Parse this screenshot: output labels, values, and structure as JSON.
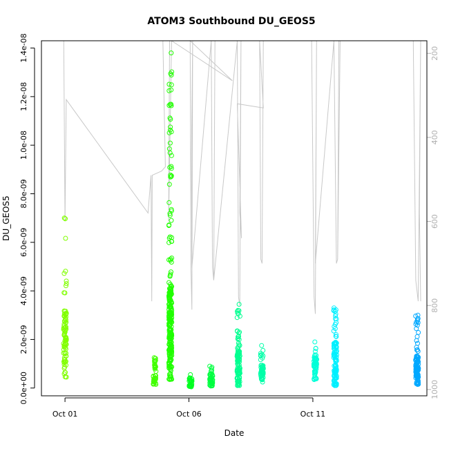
{
  "chart_data": {
    "type": "scatter",
    "title": "ATOM3 Southbound DU_GEOS5",
    "xlabel": "Date",
    "ylabel": "DU_GEOS5",
    "x_ticks": [
      {
        "day": 1,
        "label": "Oct 01"
      },
      {
        "day": 6,
        "label": "Oct 06"
      },
      {
        "day": 11,
        "label": "Oct 11"
      }
    ],
    "xlim_days": [
      0.05,
      15.6
    ],
    "ylim": [
      -3.2e-10,
      1.43e-08
    ],
    "y_ticks": [
      {
        "value": 0,
        "label": "0.0e+00"
      },
      {
        "value": 2e-09,
        "label": "2.0e-09"
      },
      {
        "value": 4e-09,
        "label": "4.0e-09"
      },
      {
        "value": 6e-09,
        "label": "6.0e-09"
      },
      {
        "value": 8e-09,
        "label": "8.0e-09"
      },
      {
        "value": 1e-08,
        "label": "1.0e-08"
      },
      {
        "value": 1.2e-08,
        "label": "1.2e-08"
      },
      {
        "value": 1.4e-08,
        "label": "1.4e-08"
      }
    ],
    "y2_ticks": [
      {
        "value": 200,
        "label": "200"
      },
      {
        "value": 400,
        "label": "400"
      },
      {
        "value": 600,
        "label": "600"
      },
      {
        "value": 800,
        "label": "800"
      },
      {
        "value": 1000,
        "label": "1000"
      }
    ],
    "y2lim": [
      1015,
      170
    ],
    "y2_reversed": true,
    "point_groups": [
      {
        "day": 1.0,
        "y_min": 4.5e-10,
        "y_max": 7e-09,
        "mode": 2e-09,
        "n": 90,
        "color": "#80ff00"
      },
      {
        "day": 4.62,
        "y_min": 1.5e-10,
        "y_max": 1.25e-09,
        "mode": 7e-10,
        "n": 40,
        "color": "#40ff00"
      },
      {
        "day": 5.25,
        "y_min": 3.5e-10,
        "y_max": 1.38e-08,
        "mode": 2.5e-09,
        "n": 260,
        "color": "#20ff00"
      },
      {
        "day": 6.07,
        "y_min": 5e-11,
        "y_max": 5.5e-10,
        "mode": 2.5e-10,
        "n": 30,
        "color": "#00ff20"
      },
      {
        "day": 6.9,
        "y_min": 8e-11,
        "y_max": 9e-10,
        "mode": 3.5e-10,
        "n": 45,
        "color": "#00ff40"
      },
      {
        "day": 8.0,
        "y_min": 1e-10,
        "y_max": 3.45e-09,
        "mode": 9e-10,
        "n": 110,
        "color": "#00ff90"
      },
      {
        "day": 8.95,
        "y_min": 2.5e-10,
        "y_max": 1.75e-09,
        "mode": 6.5e-10,
        "n": 50,
        "color": "#00ffa8"
      },
      {
        "day": 11.1,
        "y_min": 3.5e-10,
        "y_max": 1.9e-09,
        "mode": 9e-10,
        "n": 60,
        "color": "#00ffd8"
      },
      {
        "day": 11.9,
        "y_min": 1e-10,
        "y_max": 3.3e-09,
        "mode": 1.1e-09,
        "n": 110,
        "color": "#00f0ff"
      },
      {
        "day": 15.2,
        "y_min": 1.5e-10,
        "y_max": 3e-09,
        "mode": 8e-10,
        "n": 110,
        "color": "#00a8ff"
      }
    ],
    "altitude_trace": {
      "color": "#c8c8c8",
      "points": [
        [
          0.95,
          170
        ],
        [
          1.0,
          600
        ],
        [
          1.05,
          310
        ],
        [
          4.35,
          580
        ],
        [
          4.47,
          490
        ],
        [
          4.5,
          790
        ],
        [
          4.52,
          490
        ],
        [
          4.9,
          480
        ],
        [
          5.05,
          470
        ],
        [
          4.95,
          170
        ],
        [
          5.3,
          170
        ],
        [
          5.18,
          600
        ],
        [
          5.22,
          170
        ],
        [
          5.29,
          170
        ],
        [
          5.3,
          170
        ],
        [
          7.75,
          265
        ],
        [
          6.05,
          170
        ],
        [
          6.08,
          710
        ],
        [
          6.12,
          810
        ],
        [
          6.15,
          170
        ],
        [
          6.1,
          440
        ],
        [
          6.12,
          710
        ],
        [
          6.9,
          170
        ],
        [
          6.95,
          710
        ],
        [
          7.0,
          740
        ],
        [
          7.05,
          170
        ],
        [
          7.0,
          740
        ],
        [
          7.95,
          170
        ],
        [
          8.0,
          780
        ],
        [
          8.05,
          800
        ],
        [
          8.1,
          170
        ],
        [
          8.05,
          580
        ],
        [
          8.12,
          640
        ],
        [
          7.95,
          320
        ],
        [
          9.0,
          330
        ],
        [
          8.85,
          170
        ],
        [
          8.9,
          690
        ],
        [
          8.95,
          700
        ],
        [
          9.0,
          170
        ],
        [
          10.95,
          170
        ],
        [
          11.05,
          780
        ],
        [
          11.1,
          820
        ],
        [
          11.15,
          170
        ],
        [
          11.1,
          700
        ],
        [
          11.85,
          170
        ],
        [
          11.95,
          700
        ],
        [
          12.0,
          690
        ],
        [
          12.05,
          170
        ],
        [
          12.0,
          690
        ],
        [
          12.1,
          170
        ],
        [
          15.05,
          170
        ],
        [
          15.15,
          740
        ],
        [
          15.25,
          790
        ],
        [
          15.35,
          170
        ],
        [
          15.3,
          580
        ],
        [
          15.35,
          790
        ]
      ]
    }
  }
}
